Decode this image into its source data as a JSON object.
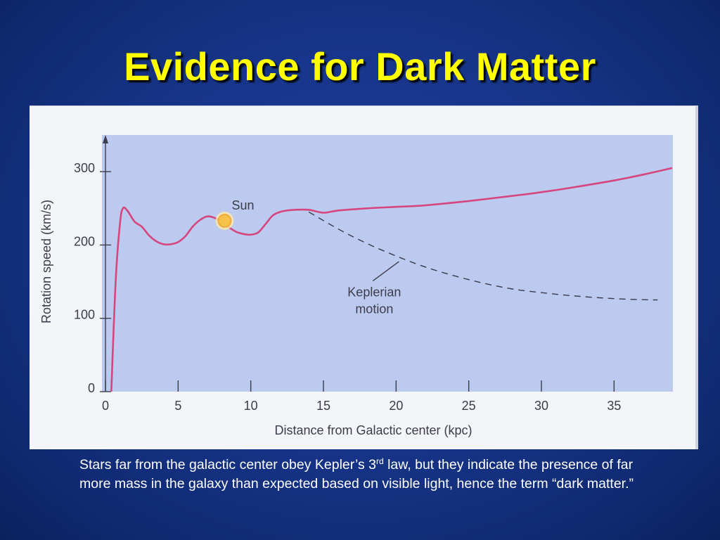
{
  "slide": {
    "title": "Evidence for Dark Matter",
    "caption_part1": "Stars far from the galactic center obey Kepler’s 3",
    "caption_sup": "rd",
    "caption_part2": " law, but they indicate the presence of far more mass in the galaxy than expected based on visible light, hence the term “dark matter.”"
  },
  "colors": {
    "background": "#17358a",
    "title": "#ffff00",
    "plot_area": "#bccaf0",
    "curve": "#d6457d",
    "keplerian": "#3a3a4a",
    "sun": "#f6c24a"
  },
  "chart_data": {
    "type": "line",
    "xlabel": "Distance from Galactic center (kpc)",
    "ylabel": "Rotation speed (km/s)",
    "xlim": [
      0,
      39
    ],
    "ylim": [
      0,
      350
    ],
    "x_ticks": [
      0,
      5,
      10,
      15,
      20,
      25,
      30,
      35
    ],
    "y_ticks": [
      0,
      100,
      200,
      300
    ],
    "grid": false,
    "series": [
      {
        "role": "observed",
        "x": [
          0.4,
          0.7,
          1.0,
          1.2,
          1.5,
          2.0,
          2.5,
          3.0,
          3.5,
          4.0,
          4.5,
          5.0,
          5.5,
          6.0,
          6.5,
          7.0,
          7.5,
          8.0,
          8.5,
          9.0,
          9.5,
          10.0,
          10.5,
          11.0,
          11.5,
          12.0,
          12.5,
          13.0,
          14.0,
          15.0,
          16.0,
          18.0,
          20.0,
          22.0,
          25.0,
          28.0,
          30.0,
          32.0,
          35.0,
          37.0,
          39.0
        ],
        "y": [
          0,
          150,
          230,
          250,
          247,
          232,
          225,
          213,
          205,
          201,
          201,
          204,
          212,
          225,
          234,
          239,
          237,
          231,
          224,
          218,
          215,
          214,
          217,
          228,
          240,
          245,
          247,
          248,
          248,
          244,
          247,
          250,
          252,
          254,
          260,
          267,
          272,
          278,
          288,
          296,
          305
        ]
      },
      {
        "role": "keplerian",
        "x": [
          14,
          16,
          18,
          20,
          22,
          24,
          26,
          28,
          30,
          32,
          34,
          36,
          38
        ],
        "y": [
          245,
          222,
          202,
          185,
          170,
          158,
          148,
          140,
          135,
          131,
          128,
          126,
          125
        ]
      }
    ],
    "annotations": [
      {
        "label": "Sun",
        "x": 8.2,
        "y": 233
      },
      {
        "label_line1": "Keplerian",
        "label_line2": "motion",
        "x": 18.5,
        "y": 130,
        "points_to": [
          20,
          185
        ]
      }
    ]
  }
}
